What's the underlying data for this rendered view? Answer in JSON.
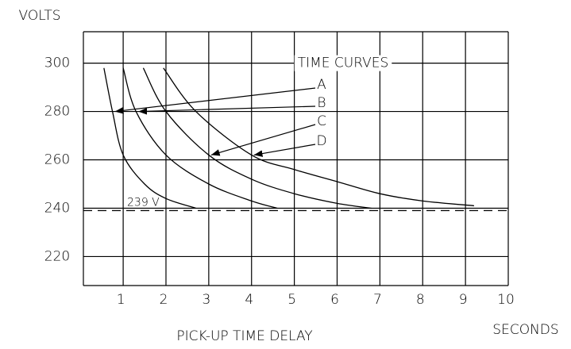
{
  "chart_data": {
    "type": "line",
    "title": "TIME CURVES",
    "y_label": "VOLTS",
    "x_label": "PICK-UP TIME DELAY",
    "x_unit_label": "SECONDS",
    "xlim": [
      0.07,
      10
    ],
    "ylim": [
      208,
      313
    ],
    "xticks": [
      1,
      2,
      3,
      4,
      5,
      6,
      7,
      8,
      9,
      10
    ],
    "yticks": [
      220,
      240,
      260,
      280,
      300
    ],
    "grid": true,
    "reference_line": {
      "value": 239,
      "label": "239 V"
    },
    "series": [
      {
        "name": "A",
        "color": "#000000",
        "x": [
          0.55,
          0.75,
          1,
          1.5,
          2,
          2.7
        ],
        "values": [
          298,
          280,
          262,
          250,
          244,
          240
        ]
      },
      {
        "name": "B",
        "color": "#000000",
        "x": [
          1.0,
          1.3,
          2,
          3,
          4,
          4.6
        ],
        "values": [
          298,
          280,
          262,
          250,
          243,
          240
        ]
      },
      {
        "name": "C",
        "color": "#000000",
        "x": [
          1.47,
          2,
          3,
          4,
          5,
          6,
          6.8
        ],
        "values": [
          298,
          280,
          262,
          252,
          246,
          242,
          240
        ]
      },
      {
        "name": "D",
        "color": "#000000",
        "x": [
          1.94,
          2.7,
          4,
          5,
          6,
          7,
          8,
          9.2
        ],
        "values": [
          298,
          280,
          262,
          256,
          251,
          246,
          243,
          241
        ]
      }
    ]
  }
}
